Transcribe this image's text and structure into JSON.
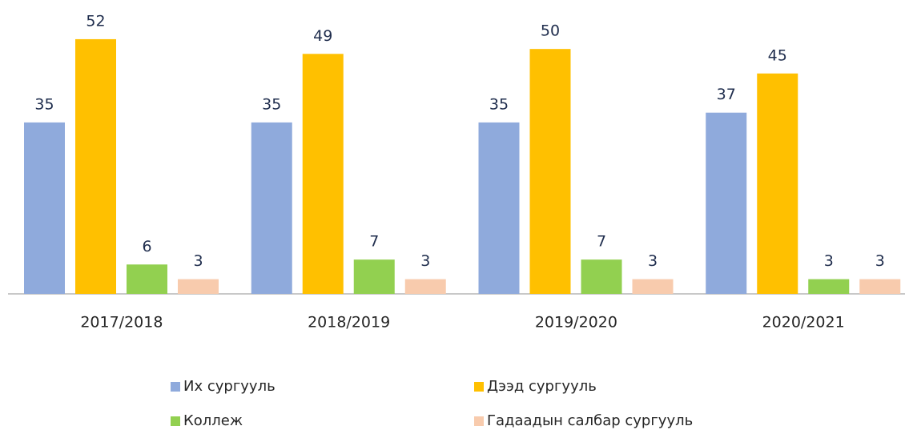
{
  "chart_data": {
    "type": "bar",
    "categories": [
      "2017/2018",
      "2018/2019",
      "2019/2020",
      "2020/2021"
    ],
    "series": [
      {
        "name": "Их сургууль",
        "color": "#8faadc",
        "values": [
          35,
          35,
          35,
          37
        ]
      },
      {
        "name": "Дээд сургууль",
        "color": "#ffc000",
        "values": [
          52,
          49,
          50,
          45
        ]
      },
      {
        "name": "Коллеж",
        "color": "#92d050",
        "values": [
          6,
          7,
          7,
          3
        ]
      },
      {
        "name": "Гадаадын салбар сургууль",
        "color": "#f8cbad",
        "values": [
          3,
          3,
          3,
          3
        ]
      }
    ],
    "ylim": [
      0,
      60
    ],
    "legend": "bottom"
  }
}
